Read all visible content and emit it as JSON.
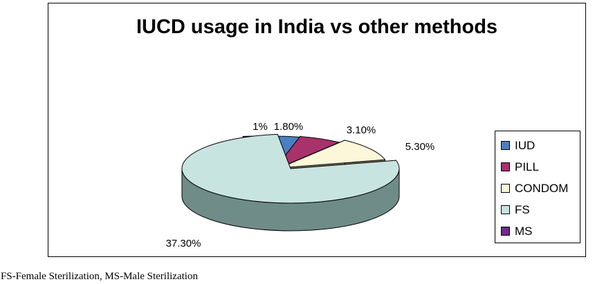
{
  "chart_data": {
    "type": "pie",
    "title": "IUCD usage in India vs other methods",
    "categories": [
      "IUD",
      "PILL",
      "CONDOM",
      "FS",
      "MS"
    ],
    "values": [
      1.8,
      3.1,
      5.3,
      37.3,
      1.0
    ],
    "data_labels": [
      "1.80%",
      "3.10%",
      "5.30%",
      "37.30%",
      "1%"
    ],
    "colors": [
      "#4a7fc1",
      "#a8326a",
      "#fcf7d9",
      "#c8e4e0",
      "#6b2d86"
    ],
    "side_colors": [
      "#2d5585",
      "#6e1f45",
      "#8a8163",
      "#6f8c89",
      "#3b1a4c"
    ],
    "style": "3d-exploded",
    "legend": "right"
  },
  "footnote": "FS-Female Sterilization, MS-Male Sterilization"
}
